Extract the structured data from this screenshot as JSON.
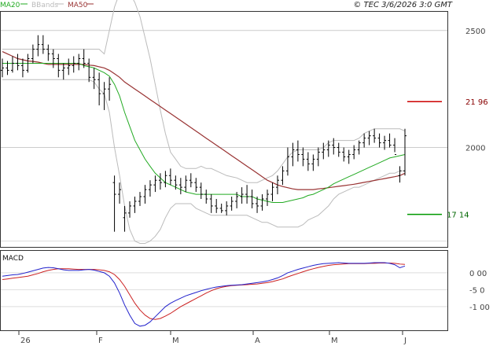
{
  "chart_data": [
    {
      "type": "line",
      "panel": "price",
      "legend": [
        {
          "name": "MA20",
          "color": "#22aa22"
        },
        {
          "name": "BBands",
          "color": "#bbbbbb"
        },
        {
          "name": "MA50",
          "color": "#993333"
        }
      ],
      "timestamp": "© TEC 3/6/2026 3:0 GMT",
      "ylim": [
        1575,
        2580
      ],
      "y_ticks": [
        2500,
        2000
      ],
      "y_tick_labels": [
        "2500",
        "2000"
      ],
      "x_tick_labels": [
        "26",
        "F",
        "M",
        "A",
        "M",
        "J"
      ],
      "levels": [
        {
          "label": "21 96",
          "value": 2196,
          "color": "#cc0000"
        },
        {
          "label": "17 14",
          "value": 1714,
          "color": "#009900"
        }
      ],
      "ohlc": [
        [
          2330,
          2380,
          2300,
          2340
        ],
        [
          2340,
          2370,
          2310,
          2330
        ],
        [
          2330,
          2390,
          2320,
          2360
        ],
        [
          2360,
          2400,
          2330,
          2350
        ],
        [
          2350,
          2380,
          2300,
          2330
        ],
        [
          2330,
          2400,
          2320,
          2380
        ],
        [
          2380,
          2440,
          2360,
          2420
        ],
        [
          2420,
          2480,
          2390,
          2440
        ],
        [
          2440,
          2480,
          2400,
          2420
        ],
        [
          2420,
          2440,
          2370,
          2400
        ],
        [
          2400,
          2420,
          2340,
          2380
        ],
        [
          2380,
          2400,
          2300,
          2330
        ],
        [
          2330,
          2360,
          2290,
          2340
        ],
        [
          2340,
          2380,
          2310,
          2350
        ],
        [
          2350,
          2390,
          2320,
          2360
        ],
        [
          2360,
          2400,
          2330,
          2380
        ],
        [
          2380,
          2420,
          2340,
          2360
        ],
        [
          2360,
          2380,
          2280,
          2300
        ],
        [
          2300,
          2340,
          2250,
          2290
        ],
        [
          2290,
          2320,
          2180,
          2230
        ],
        [
          2230,
          2280,
          2160,
          2250
        ],
        [
          2250,
          2300,
          2200,
          2270
        ],
        [
          1850,
          1880,
          1640,
          1800
        ],
        [
          1800,
          1850,
          1760,
          1820
        ],
        [
          1700,
          1750,
          1640,
          1720
        ],
        [
          1720,
          1770,
          1700,
          1750
        ],
        [
          1750,
          1790,
          1720,
          1770
        ],
        [
          1770,
          1810,
          1750,
          1790
        ],
        [
          1790,
          1840,
          1760,
          1820
        ],
        [
          1820,
          1860,
          1790,
          1840
        ],
        [
          1840,
          1880,
          1810,
          1860
        ],
        [
          1860,
          1890,
          1820,
          1850
        ],
        [
          1850,
          1900,
          1830,
          1880
        ],
        [
          1880,
          1910,
          1840,
          1860
        ],
        [
          1860,
          1880,
          1820,
          1840
        ],
        [
          1840,
          1870,
          1800,
          1830
        ],
        [
          1830,
          1880,
          1810,
          1860
        ],
        [
          1860,
          1890,
          1830,
          1850
        ],
        [
          1850,
          1870,
          1810,
          1830
        ],
        [
          1830,
          1850,
          1780,
          1800
        ],
        [
          1800,
          1820,
          1760,
          1780
        ],
        [
          1780,
          1800,
          1720,
          1750
        ],
        [
          1750,
          1780,
          1720,
          1740
        ],
        [
          1740,
          1760,
          1720,
          1730
        ],
        [
          1730,
          1770,
          1710,
          1750
        ],
        [
          1750,
          1790,
          1730,
          1770
        ],
        [
          1770,
          1810,
          1740,
          1790
        ],
        [
          1790,
          1830,
          1760,
          1800
        ],
        [
          1800,
          1840,
          1760,
          1790
        ],
        [
          1790,
          1820,
          1740,
          1760
        ],
        [
          1760,
          1790,
          1720,
          1750
        ],
        [
          1750,
          1800,
          1730,
          1780
        ],
        [
          1780,
          1820,
          1750,
          1800
        ],
        [
          1800,
          1850,
          1770,
          1830
        ],
        [
          1830,
          1880,
          1800,
          1860
        ],
        [
          1860,
          1920,
          1840,
          1900
        ],
        [
          1900,
          2000,
          1880,
          1960
        ],
        [
          1960,
          2020,
          1920,
          1990
        ],
        [
          1990,
          2030,
          1940,
          1970
        ],
        [
          1970,
          2000,
          1920,
          1950
        ],
        [
          1950,
          1980,
          1900,
          1930
        ],
        [
          1930,
          1970,
          1900,
          1950
        ],
        [
          1950,
          2000,
          1920,
          1980
        ],
        [
          1980,
          2020,
          1950,
          1990
        ],
        [
          1990,
          2030,
          1960,
          2010
        ],
        [
          2010,
          2040,
          1970,
          2000
        ],
        [
          2000,
          2020,
          1960,
          1980
        ],
        [
          1980,
          2000,
          1940,
          1960
        ],
        [
          1960,
          1990,
          1930,
          1970
        ],
        [
          1970,
          2010,
          1950,
          1990
        ],
        [
          1990,
          2030,
          1970,
          2020
        ],
        [
          2020,
          2060,
          2000,
          2040
        ],
        [
          2040,
          2070,
          2010,
          2050
        ],
        [
          2050,
          2080,
          2020,
          2040
        ],
        [
          2040,
          2060,
          2000,
          2020
        ],
        [
          2020,
          2050,
          1990,
          2030
        ],
        [
          2030,
          2060,
          2000,
          2010
        ],
        [
          2010,
          2040,
          1980,
          1970
        ],
        [
          1880,
          1920,
          1850,
          1900
        ],
        [
          1900,
          2080,
          1880,
          2050
        ]
      ],
      "ma20": [
        2360,
        2360,
        2360,
        2360,
        2360,
        2360,
        2360,
        2360,
        2360,
        2360,
        2360,
        2360,
        2360,
        2360,
        2360,
        2360,
        2350,
        2345,
        2340,
        2330,
        2320,
        2305,
        2270,
        2220,
        2150,
        2090,
        2030,
        1990,
        1950,
        1920,
        1890,
        1870,
        1850,
        1840,
        1830,
        1820,
        1810,
        1805,
        1800,
        1800,
        1800,
        1800,
        1800,
        1800,
        1800,
        1800,
        1800,
        1790,
        1790,
        1790,
        1780,
        1775,
        1770,
        1765,
        1765,
        1765,
        1770,
        1775,
        1780,
        1785,
        1795,
        1800,
        1810,
        1820,
        1830,
        1845,
        1855,
        1865,
        1875,
        1885,
        1895,
        1905,
        1915,
        1925,
        1935,
        1945,
        1955,
        1960,
        1965,
        1970
      ],
      "ma50": [
        2410,
        2400,
        2390,
        2380,
        2375,
        2370,
        2368,
        2365,
        2360,
        2355,
        2355,
        2355,
        2355,
        2355,
        2355,
        2355,
        2355,
        2352,
        2350,
        2345,
        2340,
        2330,
        2315,
        2300,
        2280,
        2265,
        2250,
        2235,
        2220,
        2205,
        2190,
        2175,
        2160,
        2145,
        2130,
        2115,
        2100,
        2085,
        2070,
        2055,
        2040,
        2025,
        2010,
        1995,
        1980,
        1965,
        1950,
        1935,
        1920,
        1905,
        1890,
        1875,
        1860,
        1850,
        1840,
        1833,
        1828,
        1823,
        1820,
        1820,
        1820,
        1820,
        1823,
        1825,
        1828,
        1831,
        1834,
        1837,
        1840,
        1843,
        1847,
        1851,
        1855,
        1859,
        1863,
        1867,
        1871,
        1875,
        1880,
        1890
      ],
      "bb_upper": [
        2420,
        2420,
        2420,
        2420,
        2420,
        2420,
        2420,
        2420,
        2420,
        2420,
        2420,
        2420,
        2420,
        2420,
        2420,
        2420,
        2420,
        2420,
        2420,
        2420,
        2400,
        2500,
        2600,
        2660,
        2680,
        2660,
        2620,
        2560,
        2470,
        2380,
        2270,
        2160,
        2060,
        1980,
        1950,
        1920,
        1910,
        1910,
        1910,
        1920,
        1910,
        1910,
        1900,
        1890,
        1880,
        1875,
        1870,
        1860,
        1850,
        1850,
        1850,
        1860,
        1870,
        1880,
        1900,
        1930,
        1960,
        1980,
        1990,
        1990,
        1990,
        1990,
        1990,
        2000,
        2020,
        2030,
        2030,
        2030,
        2030,
        2030,
        2040,
        2060,
        2070,
        2080,
        2080,
        2080,
        2080,
        2080,
        2080,
        2070
      ],
      "bb_lower": [
        2290,
        2290,
        2290,
        2290,
        2290,
        2290,
        2290,
        2290,
        2290,
        2290,
        2290,
        2290,
        2290,
        2290,
        2290,
        2290,
        2290,
        2290,
        2280,
        2250,
        2230,
        2150,
        2000,
        1880,
        1750,
        1650,
        1600,
        1590,
        1590,
        1600,
        1620,
        1650,
        1700,
        1740,
        1760,
        1760,
        1760,
        1760,
        1740,
        1730,
        1720,
        1710,
        1710,
        1710,
        1710,
        1710,
        1710,
        1710,
        1710,
        1700,
        1690,
        1680,
        1680,
        1670,
        1660,
        1660,
        1660,
        1660,
        1660,
        1670,
        1690,
        1700,
        1710,
        1730,
        1750,
        1780,
        1800,
        1810,
        1820,
        1830,
        1830,
        1840,
        1850,
        1860,
        1870,
        1880,
        1890,
        1890,
        1900,
        1900
      ]
    },
    {
      "type": "line",
      "panel": "macd",
      "title": "MACD",
      "ylim": [
        -170,
        65
      ],
      "y_ticks": [
        0,
        -50,
        -100
      ],
      "y_tick_labels": [
        "0 00",
        "-5 0",
        "-1 00"
      ],
      "series": [
        {
          "name": "MACD",
          "color": "#2222cc",
          "values": [
            -10,
            -8,
            -6,
            -5,
            -2,
            2,
            6,
            10,
            14,
            16,
            15,
            12,
            9,
            7,
            7,
            7,
            9,
            10,
            8,
            4,
            0,
            -10,
            -30,
            -60,
            -95,
            -125,
            -150,
            -158,
            -155,
            -145,
            -130,
            -115,
            -100,
            -90,
            -82,
            -75,
            -68,
            -63,
            -58,
            -53,
            -49,
            -45,
            -42,
            -40,
            -38,
            -37,
            -36,
            -35,
            -33,
            -31,
            -29,
            -27,
            -24,
            -20,
            -15,
            -8,
            0,
            5,
            10,
            14,
            18,
            22,
            25,
            27,
            28,
            29,
            30,
            29,
            28,
            28,
            28,
            28,
            29,
            30,
            30,
            30,
            28,
            24,
            15,
            20
          ]
        },
        {
          "name": "Signal",
          "color": "#cc2222",
          "values": [
            -20,
            -18,
            -16,
            -14,
            -12,
            -10,
            -6,
            -2,
            3,
            7,
            10,
            12,
            12,
            12,
            11,
            10,
            10,
            10,
            10,
            9,
            7,
            3,
            -5,
            -20,
            -40,
            -65,
            -90,
            -110,
            -125,
            -135,
            -138,
            -135,
            -128,
            -120,
            -110,
            -100,
            -92,
            -84,
            -76,
            -68,
            -60,
            -53,
            -47,
            -43,
            -40,
            -38,
            -37,
            -36,
            -35,
            -34,
            -33,
            -31,
            -29,
            -26,
            -22,
            -18,
            -12,
            -7,
            -2,
            3,
            8,
            12,
            16,
            19,
            22,
            24,
            25,
            26,
            27,
            27,
            27,
            27,
            28,
            28,
            29,
            29,
            29,
            28,
            26,
            25
          ]
        }
      ]
    }
  ]
}
